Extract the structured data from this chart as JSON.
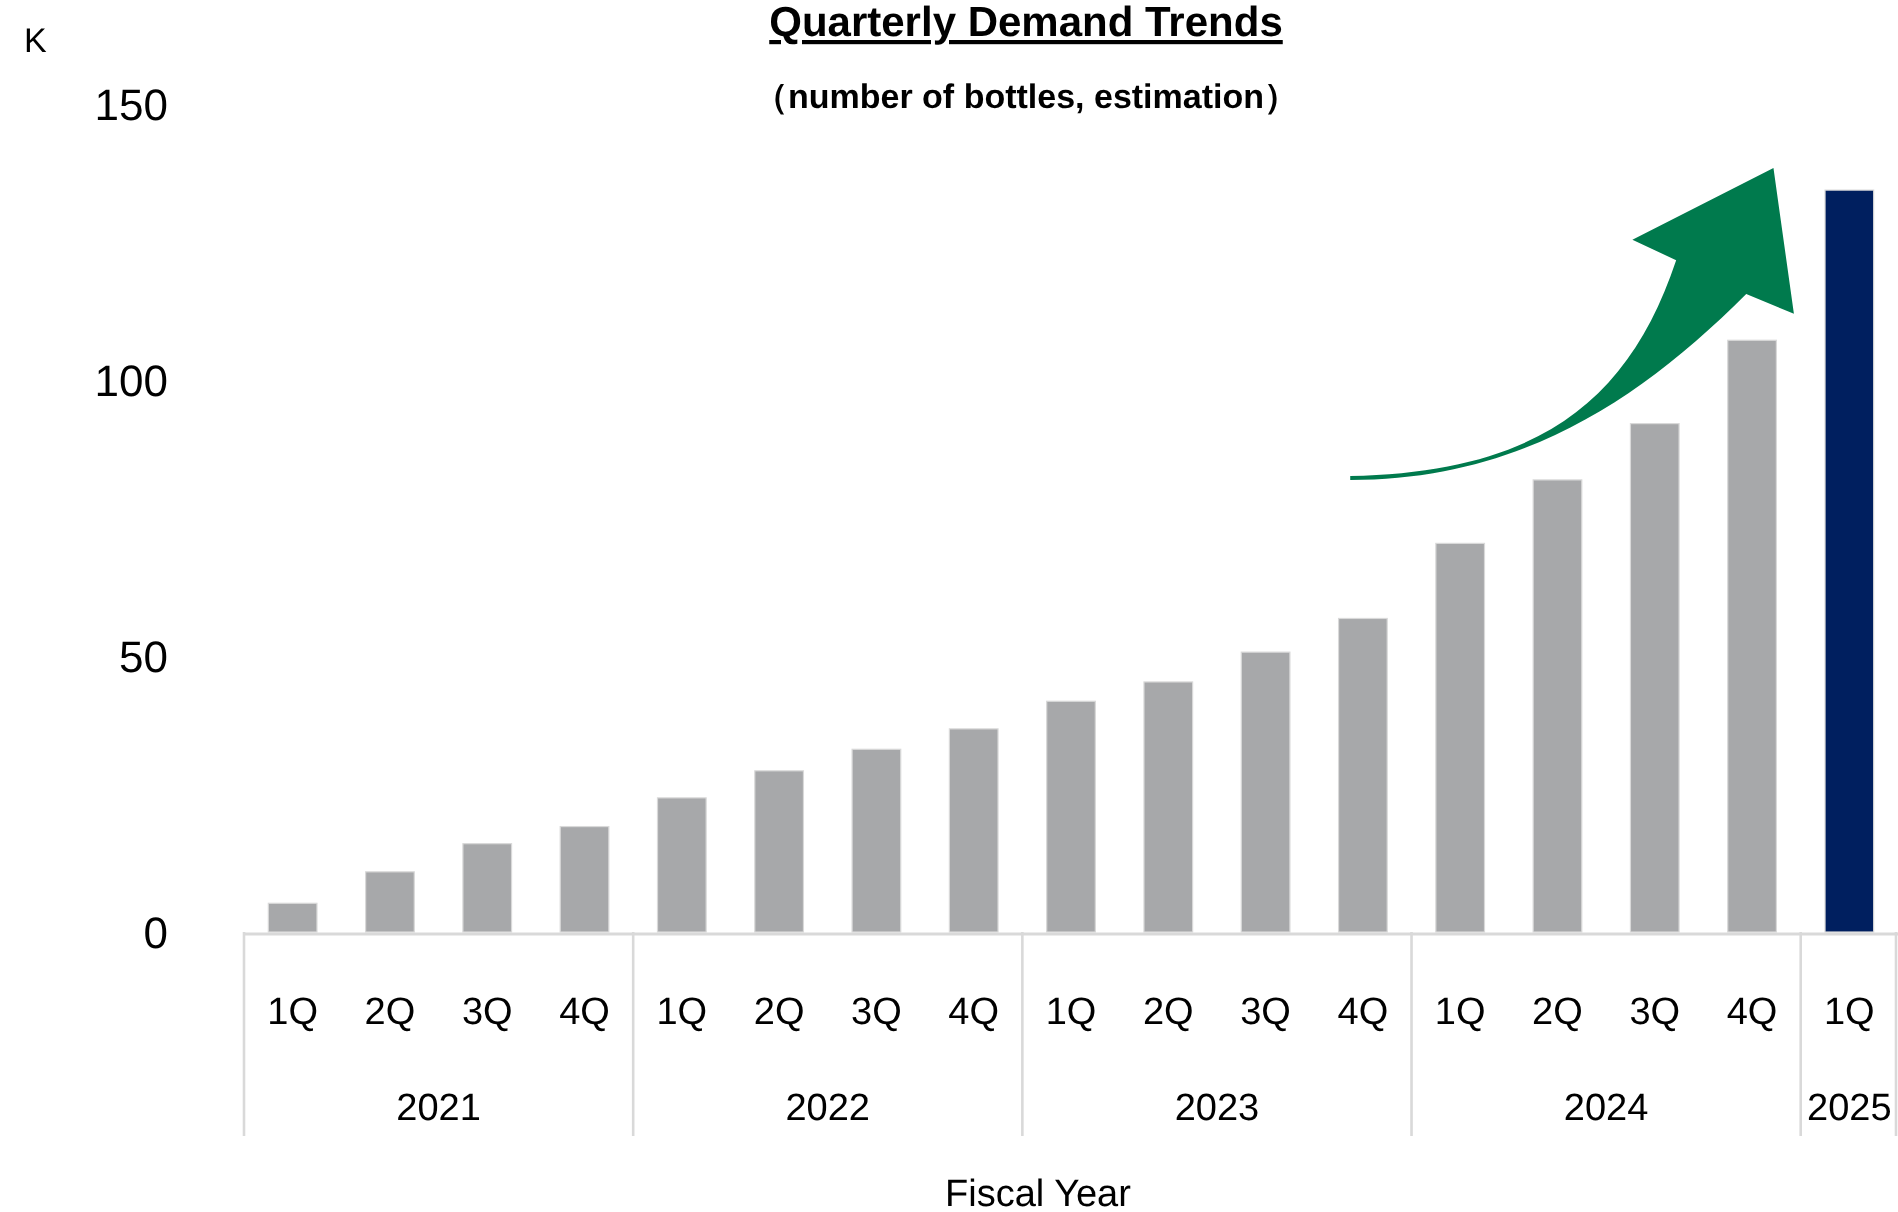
{
  "chart_data": {
    "type": "bar",
    "title": "Quarterly Demand Trends",
    "subtitle": "（number of bottles, estimation）",
    "xlabel": "Fiscal Year",
    "ylabel": "K",
    "categories": [
      "1Q",
      "2Q",
      "3Q",
      "4Q",
      "1Q",
      "2Q",
      "3Q",
      "4Q",
      "1Q",
      "2Q",
      "3Q",
      "4Q",
      "1Q",
      "2Q",
      "3Q",
      "4Q",
      "1Q"
    ],
    "values": [
      5.2,
      10.9,
      16,
      19.1,
      24.3,
      29.2,
      33.1,
      36.8,
      41.8,
      45.3,
      50.7,
      56.8,
      70.4,
      81.9,
      92.1,
      107.2,
      134.4
    ],
    "colors": [
      "#a7a8aa",
      "#a7a8aa",
      "#a7a8aa",
      "#a7a8aa",
      "#a7a8aa",
      "#a7a8aa",
      "#a7a8aa",
      "#a7a8aa",
      "#a7a8aa",
      "#a7a8aa",
      "#a7a8aa",
      "#a7a8aa",
      "#a7a8aa",
      "#a7a8aa",
      "#a7a8aa",
      "#a7a8aa",
      "#001f5f"
    ],
    "annotations": [
      "2021",
      "2022",
      "2023",
      "2024",
      "2025"
    ],
    "ylim": [
      0,
      150
    ],
    "yticks": [
      0,
      50,
      100,
      150
    ],
    "grid": false
  }
}
